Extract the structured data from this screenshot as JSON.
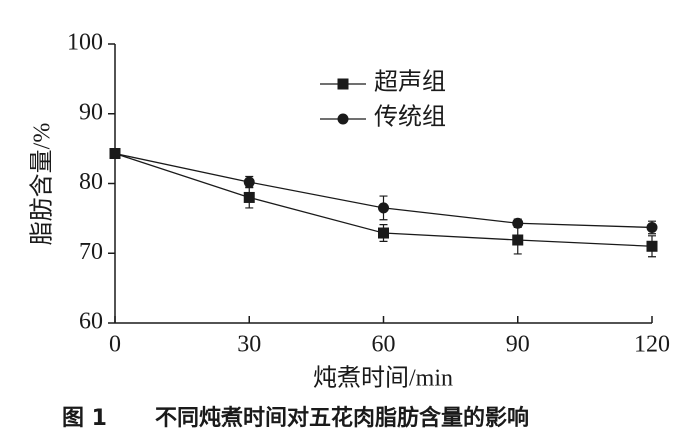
{
  "chart_data": {
    "type": "line",
    "caption_label": "图 1",
    "title": "不同炖煮时间对五花肉脂肪含量的影响",
    "x_label": "炖煮时间/min",
    "y_label": "脂肪含量/%",
    "x": [
      0,
      30,
      60,
      90,
      120
    ],
    "xlim": [
      0,
      120
    ],
    "xticks": [
      0,
      30,
      60,
      90,
      120
    ],
    "ylim": [
      60,
      100
    ],
    "yticks": [
      60,
      70,
      80,
      90,
      100
    ],
    "series": [
      {
        "name": "超声组",
        "color": "#1a1a1a",
        "marker": "square",
        "values": [
          84.3,
          78.0,
          72.9,
          71.9,
          71.0
        ],
        "errors": [
          0,
          1.5,
          1.2,
          2.0,
          1.5
        ]
      },
      {
        "name": "传统组",
        "color": "#1a1a1a",
        "marker": "circle",
        "values": [
          84.3,
          80.2,
          76.5,
          74.3,
          73.7
        ],
        "errors": [
          0,
          0.8,
          1.7,
          0.6,
          0.9
        ]
      }
    ]
  }
}
